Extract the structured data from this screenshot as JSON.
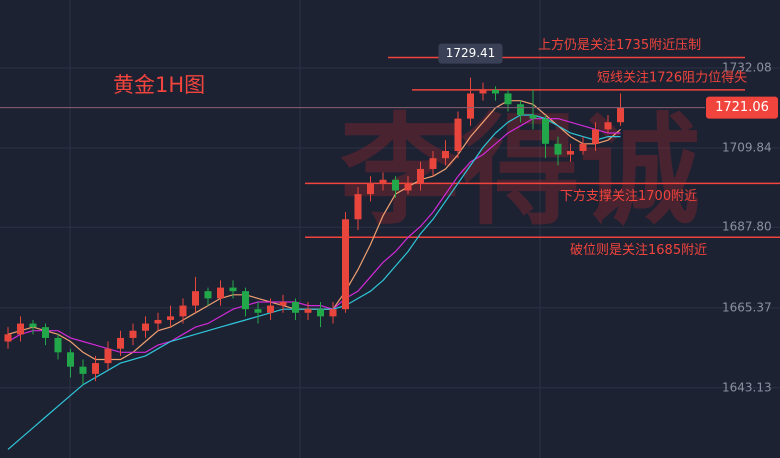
{
  "chart_data": {
    "type": "candlestick",
    "title": "黄金1H图",
    "watermark": "李得诚",
    "ylim": [
      1623.6,
      1751.0
    ],
    "yticks": [
      {
        "value": 1732.08,
        "label": "1732.08"
      },
      {
        "value": 1709.84,
        "label": "1709.84"
      },
      {
        "value": 1687.8,
        "label": "1687.80"
      },
      {
        "value": 1665.37,
        "label": "1665.37"
      },
      {
        "value": 1643.13,
        "label": "1643.13"
      }
    ],
    "grid": true,
    "up_color": "#e8453c",
    "down_color": "#22a84a",
    "open": [
      1656,
      1658,
      1661,
      1660,
      1657,
      1653,
      1649,
      1647,
      1650,
      1654,
      1657,
      1659,
      1661,
      1662,
      1663,
      1666,
      1670,
      1668,
      1671,
      1670,
      1665,
      1664,
      1666,
      1667,
      1664,
      1665,
      1663,
      1665,
      1690,
      1697,
      1700,
      1701,
      1698,
      1700,
      1704,
      1707,
      1709,
      1718,
      1725,
      1726,
      1725,
      1722,
      1719,
      1718,
      1711,
      1708,
      1709,
      1711,
      1715,
      1717
    ],
    "high": [
      1660,
      1663,
      1662,
      1661,
      1658,
      1654,
      1651,
      1652,
      1656,
      1659,
      1661,
      1663,
      1664,
      1666,
      1668,
      1674,
      1671,
      1673,
      1673,
      1671,
      1667,
      1668,
      1669,
      1668,
      1667,
      1667,
      1667,
      1692,
      1699,
      1702,
      1703,
      1702,
      1702,
      1706,
      1709,
      1712,
      1720,
      1729.41,
      1728,
      1727,
      1726,
      1723,
      1726,
      1719,
      1713,
      1711,
      1713,
      1717,
      1719,
      1725
    ],
    "low": [
      1654,
      1656,
      1658,
      1655,
      1651,
      1646,
      1644,
      1645,
      1648,
      1652,
      1655,
      1657,
      1659,
      1660,
      1661,
      1664,
      1666,
      1666,
      1668,
      1663,
      1661,
      1662,
      1664,
      1662,
      1662,
      1660,
      1661,
      1664,
      1687,
      1695,
      1698,
      1696,
      1697,
      1698,
      1702,
      1705,
      1707,
      1716,
      1723,
      1723,
      1720,
      1717,
      1715,
      1707,
      1705,
      1706,
      1708,
      1709,
      1714,
      1716
    ],
    "close": [
      1658,
      1661,
      1660,
      1657,
      1653,
      1649,
      1647,
      1650,
      1654,
      1657,
      1659,
      1661,
      1662,
      1663,
      1666,
      1670,
      1668,
      1671,
      1670,
      1665,
      1664,
      1666,
      1667,
      1664,
      1665,
      1663,
      1665,
      1690,
      1697,
      1700,
      1701,
      1698,
      1700,
      1704,
      1707,
      1709,
      1718,
      1725,
      1726,
      1725,
      1722,
      1719,
      1718,
      1711,
      1708,
      1709,
      1711,
      1715,
      1717,
      1721.06
    ],
    "lines": [
      {
        "color": "#f0a070",
        "values": [
          1658,
          1659,
          1660,
          1659,
          1658,
          1656,
          1653,
          1651,
          1651,
          1651,
          1653,
          1656,
          1659,
          1660,
          1662,
          1664,
          1666,
          1668,
          1669,
          1669,
          1668,
          1667,
          1666,
          1665,
          1665,
          1665,
          1665,
          1670,
          1676,
          1683,
          1691,
          1697,
          1699,
          1701,
          1702,
          1704,
          1708,
          1713,
          1717,
          1721,
          1723,
          1723,
          1722,
          1719,
          1716,
          1713,
          1711,
          1711,
          1712,
          1715
        ]
      },
      {
        "color": "#d02ad8",
        "values": [
          1656,
          1658,
          1659,
          1659,
          1659,
          1657,
          1656,
          1655,
          1654,
          1653,
          1653,
          1653,
          1655,
          1656,
          1658,
          1660,
          1661,
          1663,
          1665,
          1666,
          1667,
          1667,
          1667,
          1667,
          1666,
          1666,
          1665,
          1668,
          1670,
          1674,
          1678,
          1681,
          1685,
          1688,
          1692,
          1697,
          1702,
          1706,
          1708,
          1711,
          1714,
          1716,
          1718,
          1718,
          1718,
          1717,
          1716,
          1715,
          1714,
          1714
        ]
      },
      {
        "color": "#2ec6d8",
        "values": [
          1626,
          1629,
          1632,
          1635,
          1638,
          1641,
          1644,
          1646,
          1648,
          1650,
          1651,
          1652,
          1654,
          1656,
          1657,
          1658,
          1659,
          1660,
          1661,
          1662,
          1663,
          1664,
          1665,
          1665,
          1665,
          1665,
          1665,
          1666,
          1668,
          1670,
          1673,
          1677,
          1681,
          1686,
          1690,
          1695,
          1700,
          1705,
          1710,
          1714,
          1717,
          1719,
          1719,
          1718,
          1716,
          1714,
          1713,
          1712,
          1713,
          1713
        ]
      }
    ],
    "levels": [
      {
        "value": 1735,
        "label": "上方仍是关注1735附近压制"
      },
      {
        "value": 1726,
        "label": "短线关注1726阻力位得失"
      },
      {
        "value": 1700,
        "label": "下方支撑关注1700附近"
      },
      {
        "value": 1685,
        "label": "破位则是关注1685附近"
      }
    ]
  }
}
